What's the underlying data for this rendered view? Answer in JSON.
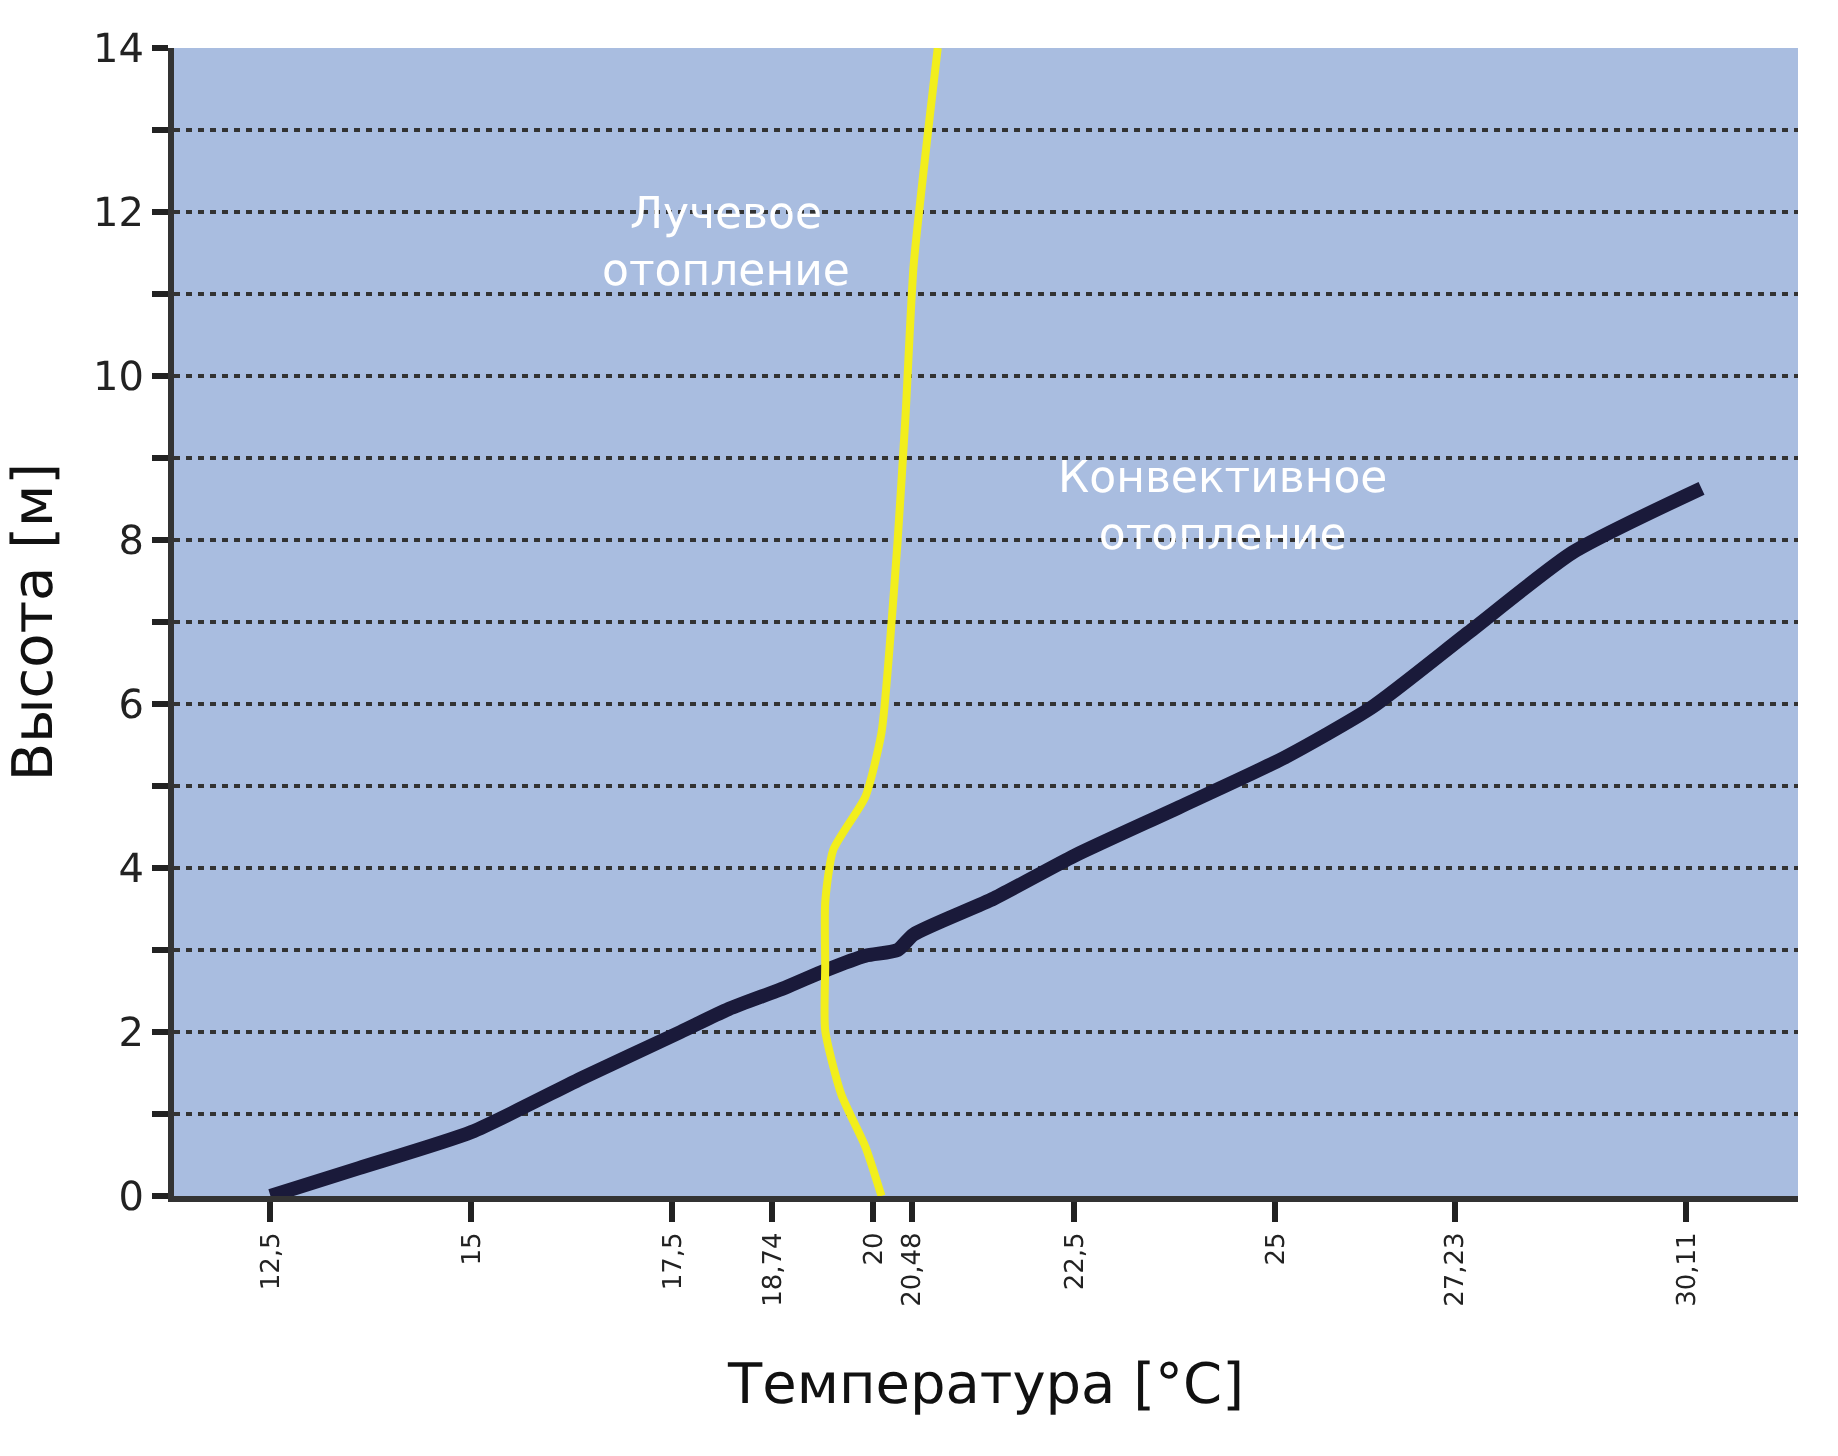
{
  "chart_data": {
    "type": "line",
    "xlabel": "Температура [°C]",
    "ylabel": "Высота [м]",
    "xlim": [
      11.3,
      31.5
    ],
    "xticks": [
      {
        "value": 12.5,
        "label": "12,5"
      },
      15,
      {
        "value": 17.5,
        "label": "17,5"
      },
      {
        "value": 18.74,
        "label": "18,74"
      },
      20,
      {
        "value": 20.48,
        "label": "20,48"
      },
      {
        "value": 22.5,
        "label": "22,5"
      },
      25,
      {
        "value": 27.23,
        "label": "27,23"
      },
      {
        "value": 30.11,
        "label": "30,11"
      }
    ],
    "ylim": [
      0,
      14
    ],
    "yticks": [
      0,
      {
        "value": 1,
        "label": null
      },
      2,
      {
        "value": 3,
        "label": null
      },
      4,
      {
        "value": 5,
        "label": null
      },
      6,
      {
        "value": 7,
        "label": null
      },
      8,
      {
        "value": 9,
        "label": null
      },
      10,
      {
        "value": 11,
        "label": null
      },
      12,
      {
        "value": 13,
        "label": null
      },
      14
    ],
    "grid": "y",
    "marker": "none",
    "line_style": "solid",
    "series": [
      {
        "color": "#1a1a3a",
        "x": [
          12.5,
          13.6,
          15.0,
          16.4,
          17.6,
          18.2,
          18.9,
          19.4,
          19.9,
          20.3,
          20.5,
          21.5,
          22.5,
          23.8,
          25.1,
          26.2,
          27.4,
          28.7,
          30.3
        ],
        "values": [
          0,
          0.34,
          0.78,
          1.45,
          2.0,
          2.28,
          2.54,
          2.75,
          2.93,
          3.0,
          3.19,
          3.63,
          4.15,
          4.74,
          5.34,
          5.96,
          6.87,
          7.85,
          8.63
        ]
      },
      {
        "color": "#f2ee1c",
        "x": [
          20.1,
          19.9,
          19.6,
          19.4,
          19.4,
          19.4,
          19.5,
          19.9,
          20.1,
          20.2,
          20.3,
          20.4,
          20.5,
          20.7,
          20.8
        ],
        "values": [
          0,
          0.6,
          1.24,
          2.02,
          2.8,
          3.58,
          4.22,
          4.87,
          5.65,
          6.68,
          7.98,
          9.53,
          11.35,
          13.16,
          14
        ]
      }
    ],
    "annotations": [
      "Лучевое\nотопление",
      "Конвективное\nотопление"
    ]
  }
}
